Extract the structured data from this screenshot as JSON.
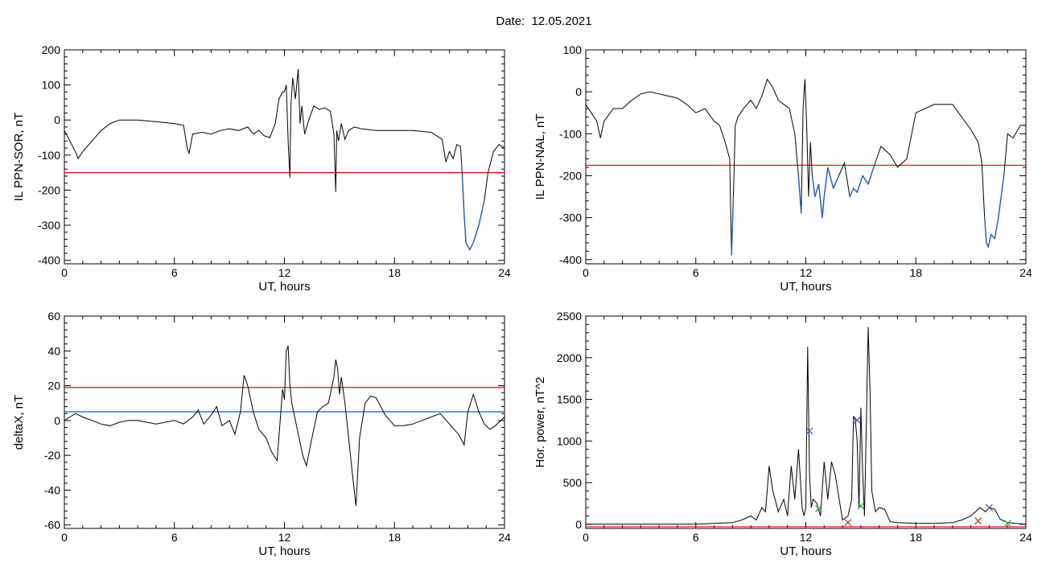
{
  "header": {
    "title": "Date:  12.05.2021"
  },
  "colors": {
    "series": "#000000",
    "threshold_red": "#ff0000",
    "threshold_blue": "#0060d0",
    "highlight_blue": "#1f5fbf",
    "marker_blue": "#3050d0",
    "marker_green": "#20b020",
    "marker_red": "#d02020"
  },
  "chart_data": [
    {
      "id": "il-sor",
      "type": "line",
      "xlabel": "UT, hours",
      "ylabel": "IL PPN-SOR, nT",
      "xlim": [
        0,
        24
      ],
      "ylim": [
        -410,
        200
      ],
      "xticks": [
        0,
        6,
        12,
        18,
        24
      ],
      "yticks": [
        -400,
        -300,
        -200,
        -100,
        0,
        100,
        200
      ],
      "threshold": [
        {
          "value": -150,
          "color": "red"
        }
      ],
      "highlight_below": -150,
      "series": [
        {
          "x": [
            0,
            0.3,
            0.6,
            0.75,
            1.0,
            1.5,
            2.0,
            2.5,
            3.0,
            4.0,
            5.0,
            6.0,
            6.5,
            6.7,
            6.8,
            7.0,
            7.5,
            8.0,
            8.5,
            9.0,
            9.5,
            10.0,
            10.3,
            10.6,
            10.9,
            11.2,
            11.5,
            11.7,
            11.9,
            12.0,
            12.1,
            12.2,
            12.3,
            12.35,
            12.45,
            12.6,
            12.75,
            12.85,
            12.95,
            13.1,
            13.3,
            13.6,
            13.9,
            14.2,
            14.5,
            14.7,
            14.8,
            14.85,
            14.95,
            15.1,
            15.3,
            15.5,
            15.8,
            16.2,
            17.0,
            18.0,
            19.0,
            20.0,
            20.6,
            20.8,
            21.0,
            21.2,
            21.4,
            21.6,
            21.7,
            21.8,
            21.9,
            22.1,
            22.3,
            22.6,
            22.9,
            23.1,
            23.4,
            23.7,
            24.0
          ],
          "y": [
            -30,
            -60,
            -90,
            -110,
            -90,
            -60,
            -30,
            -10,
            0,
            0,
            -5,
            -10,
            -15,
            -80,
            -95,
            -40,
            -35,
            -40,
            -30,
            -25,
            -30,
            -20,
            -40,
            -30,
            -45,
            -50,
            -10,
            60,
            80,
            80,
            100,
            -60,
            -165,
            40,
            120,
            60,
            145,
            -10,
            40,
            -40,
            -5,
            40,
            30,
            35,
            25,
            -40,
            -205,
            -30,
            -60,
            -10,
            -55,
            -30,
            -20,
            -25,
            -30,
            -30,
            -30,
            -35,
            -55,
            -120,
            -90,
            -110,
            -70,
            -75,
            -160,
            -270,
            -350,
            -370,
            -350,
            -300,
            -230,
            -150,
            -90,
            -70,
            -80
          ]
        }
      ]
    },
    {
      "id": "il-nal",
      "type": "line",
      "xlabel": "UT, hours",
      "ylabel": "IL PPN-NAL, nT",
      "xlim": [
        0,
        24
      ],
      "ylim": [
        -410,
        100
      ],
      "xticks": [
        0,
        6,
        12,
        18,
        24
      ],
      "yticks": [
        -400,
        -300,
        -200,
        -100,
        0,
        100
      ],
      "threshold": [
        {
          "value": -175,
          "color": "red"
        }
      ],
      "highlight_below": -175,
      "series": [
        {
          "x": [
            0,
            0.3,
            0.6,
            0.8,
            1.0,
            1.5,
            2.0,
            2.5,
            3.0,
            3.5,
            4.0,
            4.5,
            5.0,
            5.5,
            6.0,
            6.5,
            7.0,
            7.3,
            7.6,
            7.85,
            7.95,
            8.05,
            8.15,
            8.3,
            8.6,
            9.0,
            9.3,
            9.6,
            9.9,
            10.2,
            10.5,
            10.8,
            11.1,
            11.4,
            11.6,
            11.75,
            11.85,
            11.95,
            12.05,
            12.15,
            12.25,
            12.35,
            12.5,
            12.7,
            12.9,
            13.0,
            13.2,
            13.5,
            13.8,
            14.1,
            14.4,
            14.6,
            14.8,
            15.1,
            15.4,
            15.7,
            16.1,
            16.6,
            17.0,
            17.5,
            18.0,
            19.0,
            20.0,
            20.5,
            21.0,
            21.4,
            21.6,
            21.75,
            21.85,
            21.95,
            22.1,
            22.3,
            22.5,
            22.8,
            23.0,
            23.3,
            23.7,
            24.0
          ],
          "y": [
            -30,
            -50,
            -70,
            -110,
            -70,
            -40,
            -40,
            -20,
            -5,
            0,
            -5,
            -10,
            -15,
            -30,
            -50,
            -40,
            -70,
            -80,
            -120,
            -160,
            -390,
            -250,
            -80,
            -60,
            -40,
            -20,
            -40,
            -10,
            30,
            10,
            -20,
            -30,
            -40,
            -100,
            -200,
            -290,
            -40,
            30,
            -80,
            -250,
            -120,
            -200,
            -250,
            -220,
            -300,
            -250,
            -180,
            -230,
            -200,
            -170,
            -250,
            -230,
            -240,
            -200,
            -220,
            -180,
            -130,
            -150,
            -180,
            -160,
            -50,
            -30,
            -30,
            -60,
            -90,
            -120,
            -170,
            -300,
            -360,
            -370,
            -340,
            -350,
            -300,
            -200,
            -100,
            -110,
            -80,
            -80
          ]
        }
      ]
    },
    {
      "id": "deltax",
      "type": "line",
      "xlabel": "UT, hours",
      "ylabel": "deltaX, nT",
      "xlim": [
        0,
        24
      ],
      "ylim": [
        -62,
        60
      ],
      "xticks": [
        0,
        6,
        12,
        18,
        24
      ],
      "yticks": [
        -60,
        -40,
        -20,
        0,
        20,
        40,
        60
      ],
      "threshold": [
        {
          "value": 19,
          "color": "red"
        },
        {
          "value": 5,
          "color": "blue"
        }
      ],
      "series": [
        {
          "x": [
            0,
            0.3,
            0.6,
            1.0,
            1.5,
            2.0,
            2.5,
            3.0,
            3.5,
            4.0,
            4.5,
            5.0,
            5.5,
            6.0,
            6.5,
            7.0,
            7.3,
            7.6,
            8.0,
            8.3,
            8.6,
            9.0,
            9.3,
            9.6,
            9.8,
            10.0,
            10.3,
            10.6,
            11.0,
            11.3,
            11.6,
            11.9,
            12.0,
            12.1,
            12.2,
            12.3,
            12.4,
            12.6,
            12.8,
            13.0,
            13.2,
            13.5,
            13.8,
            14.1,
            14.4,
            14.7,
            14.8,
            14.9,
            15.0,
            15.1,
            15.3,
            15.5,
            15.7,
            15.9,
            16.1,
            16.4,
            16.7,
            17.0,
            17.5,
            18.0,
            18.5,
            19.0,
            19.5,
            20.0,
            20.5,
            21.0,
            21.5,
            21.8,
            22.0,
            22.3,
            22.6,
            22.9,
            23.2,
            23.5,
            24.0
          ],
          "y": [
            0,
            2,
            4,
            2,
            0,
            -2,
            -3,
            -1,
            0,
            0,
            -1,
            -2,
            -1,
            0,
            -2,
            2,
            6,
            -2,
            3,
            8,
            -3,
            0,
            -8,
            5,
            26,
            20,
            5,
            -5,
            -10,
            -18,
            -23,
            18,
            12,
            40,
            43,
            20,
            10,
            0,
            -10,
            -20,
            -26,
            -10,
            5,
            8,
            10,
            25,
            35,
            30,
            15,
            25,
            10,
            -10,
            -30,
            -49,
            -10,
            10,
            14,
            13,
            3,
            -3,
            -3,
            -2,
            0,
            2,
            4,
            -2,
            -8,
            -14,
            5,
            15,
            5,
            -2,
            -5,
            -3,
            2
          ]
        }
      ]
    },
    {
      "id": "hor-power",
      "type": "line",
      "xlabel": "UT, hours",
      "ylabel": "Hor. power, nT^2",
      "xlim": [
        0,
        24
      ],
      "ylim": [
        -50,
        2500
      ],
      "xticks": [
        0,
        6,
        12,
        18,
        24
      ],
      "yticks": [
        0,
        500,
        1000,
        1500,
        2000,
        2500
      ],
      "threshold": [
        {
          "value": -30,
          "color": "red"
        }
      ],
      "series": [
        {
          "x": [
            0,
            2,
            4,
            6,
            7,
            8,
            8.5,
            9.0,
            9.3,
            9.6,
            9.8,
            10.0,
            10.2,
            10.5,
            10.8,
            11.0,
            11.2,
            11.4,
            11.6,
            11.8,
            11.9,
            12.0,
            12.1,
            12.2,
            12.3,
            12.4,
            12.6,
            12.8,
            13.0,
            13.2,
            13.4,
            13.6,
            14.0,
            14.3,
            14.5,
            14.6,
            14.7,
            14.8,
            14.9,
            15.0,
            15.1,
            15.2,
            15.3,
            15.4,
            15.5,
            15.6,
            15.8,
            16.0,
            16.3,
            16.6,
            17.0,
            18.0,
            19.0,
            20.0,
            20.5,
            21.0,
            21.5,
            21.8,
            22.0,
            22.3,
            22.6,
            23.0,
            24.0
          ],
          "y": [
            0,
            0,
            0,
            0,
            10,
            20,
            50,
            100,
            50,
            200,
            150,
            700,
            400,
            150,
            300,
            100,
            700,
            300,
            900,
            200,
            100,
            200,
            2130,
            600,
            200,
            300,
            250,
            100,
            750,
            300,
            750,
            600,
            50,
            100,
            300,
            1300,
            1250,
            1000,
            200,
            1400,
            600,
            100,
            1200,
            2370,
            1600,
            400,
            150,
            200,
            180,
            30,
            20,
            10,
            10,
            20,
            50,
            100,
            200,
            150,
            200,
            180,
            60,
            20,
            0
          ]
        }
      ],
      "markers": [
        {
          "x": 12.2,
          "y": 1120,
          "color": "blue"
        },
        {
          "x": 12.7,
          "y": 190,
          "color": "green"
        },
        {
          "x": 14.8,
          "y": 1250,
          "color": "blue"
        },
        {
          "x": 15.0,
          "y": 220,
          "color": "green"
        },
        {
          "x": 14.3,
          "y": 20,
          "color": "red"
        },
        {
          "x": 21.4,
          "y": 40,
          "color": "red"
        },
        {
          "x": 22.0,
          "y": 200,
          "color": "blue"
        },
        {
          "x": 23.0,
          "y": 10,
          "color": "green"
        }
      ]
    }
  ]
}
